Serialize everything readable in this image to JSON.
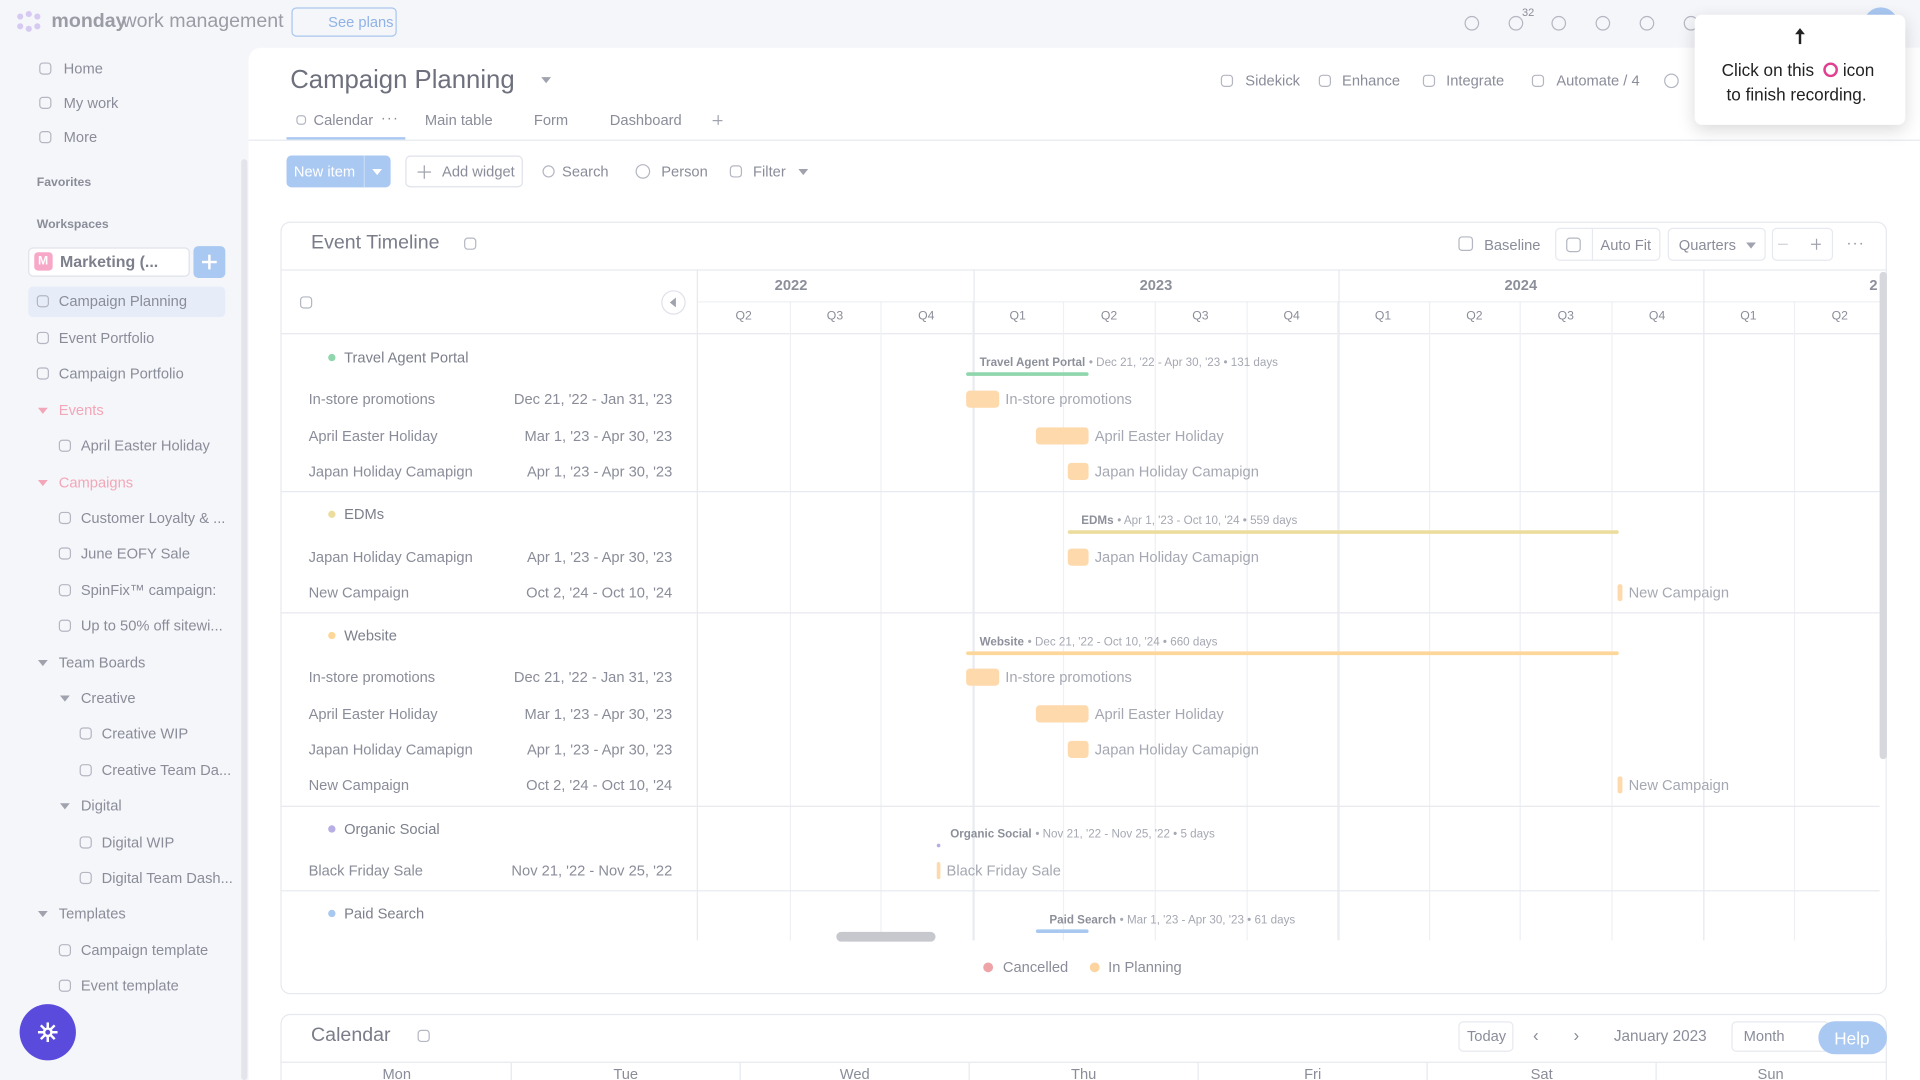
{
  "topbar": {
    "logo": "monday",
    "product": "work management",
    "see_plans": "See plans",
    "inbox_count": "32"
  },
  "sidebar": {
    "nav": [
      "Home",
      "My work",
      "More"
    ],
    "favorites": "Favorites",
    "workspaces": "Workspaces",
    "workspace_initial": "M",
    "workspace": "Marketing (...",
    "items": [
      "Campaign Planning",
      "Event Portfolio",
      "Campaign Portfolio",
      "Events",
      "April Easter Holiday",
      "Campaigns",
      "Customer Loyalty & ...",
      "June EOFY Sale",
      "SpinFix™ campaign:",
      "Up to 50% off sitewi...",
      "Team Boards",
      "Creative",
      "Creative WIP",
      "Creative Team Da...",
      "Digital",
      "Digital WIP",
      "Digital Team Dash...",
      "Templates",
      "Campaign template",
      "Event template"
    ]
  },
  "board": {
    "title": "Campaign Planning",
    "actions": [
      "Sidekick",
      "Enhance",
      "Integrate",
      "Automate / 4"
    ],
    "tabs": [
      "Calendar",
      "Main table",
      "Form",
      "Dashboard"
    ],
    "toolbar": {
      "new_item": "New item",
      "add_widget": "Add widget",
      "search": "Search",
      "person": "Person",
      "filter": "Filter"
    }
  },
  "timeline": {
    "title": "Event Timeline",
    "controls": {
      "baseline": "Baseline",
      "auto_fit": "Auto Fit",
      "scale": "Quarters"
    },
    "years": [
      "2022",
      "2023",
      "2024",
      "2"
    ],
    "quarters": [
      "Q2",
      "Q3",
      "Q4",
      "Q1",
      "Q2",
      "Q3",
      "Q4",
      "Q1",
      "Q2",
      "Q3",
      "Q4",
      "Q1",
      "Q2"
    ],
    "groups": [
      {
        "name": "Travel Agent Portal",
        "color": "#8fd6ad",
        "summary": "• Dec 21, '22 - Apr 30, '23 • 131 days",
        "rows": [
          {
            "name": "In-store promotions",
            "dates": "Dec 21, '22 - Jan 31, '23"
          },
          {
            "name": "April Easter Holiday",
            "dates": "Mar 1, '23 - Apr 30, '23"
          },
          {
            "name": "Japan Holiday Camapign",
            "dates": "Apr 1, '23 - Apr 30, '23"
          }
        ]
      },
      {
        "name": "EDMs",
        "color": "#ecdd9f",
        "summary": "• Apr 1, '23 - Oct 10, '24 • 559 days",
        "rows": [
          {
            "name": "Japan Holiday Camapign",
            "dates": "Apr 1, '23 - Apr 30, '23"
          },
          {
            "name": "New Campaign",
            "dates": "Oct 2, '24 - Oct 10, '24"
          }
        ]
      },
      {
        "name": "Website",
        "color": "#fdd79a",
        "summary": "• Dec 21, '22 - Oct 10, '24 • 660 days",
        "rows": [
          {
            "name": "In-store promotions",
            "dates": "Dec 21, '22 - Jan 31, '23"
          },
          {
            "name": "April Easter Holiday",
            "dates": "Mar 1, '23 - Apr 30, '23"
          },
          {
            "name": "Japan Holiday Camapign",
            "dates": "Apr 1, '23 - Apr 30, '23"
          },
          {
            "name": "New Campaign",
            "dates": "Oct 2, '24 - Oct 10, '24"
          }
        ]
      },
      {
        "name": "Organic Social",
        "color": "#b8aee6",
        "summary": "• Nov 21, '22 - Nov 25, '22 • 5 days",
        "rows": [
          {
            "name": "Black Friday Sale",
            "dates": "Nov 21, '22 - Nov 25, '22"
          }
        ]
      },
      {
        "name": "Paid Search",
        "color": "#a9c8f0",
        "summary": "• Mar 1, '23 - Apr 30, '23 • 61 days",
        "rows": []
      }
    ],
    "bar_color": "#fdd9ac",
    "legend": [
      {
        "label": "Cancelled",
        "color": "#eea3a6"
      },
      {
        "label": "In Planning",
        "color": "#fdd4a0"
      }
    ]
  },
  "calendar": {
    "title": "Calendar",
    "today": "Today",
    "month": "January 2023",
    "view": "Month",
    "days": [
      "Mon",
      "Tue",
      "Wed",
      "Thu",
      "Fri",
      "Sat",
      "Sun"
    ]
  },
  "tooltip": {
    "line1": "Click on this",
    "line2": "icon",
    "line3": "to finish recording."
  },
  "help": "Help"
}
